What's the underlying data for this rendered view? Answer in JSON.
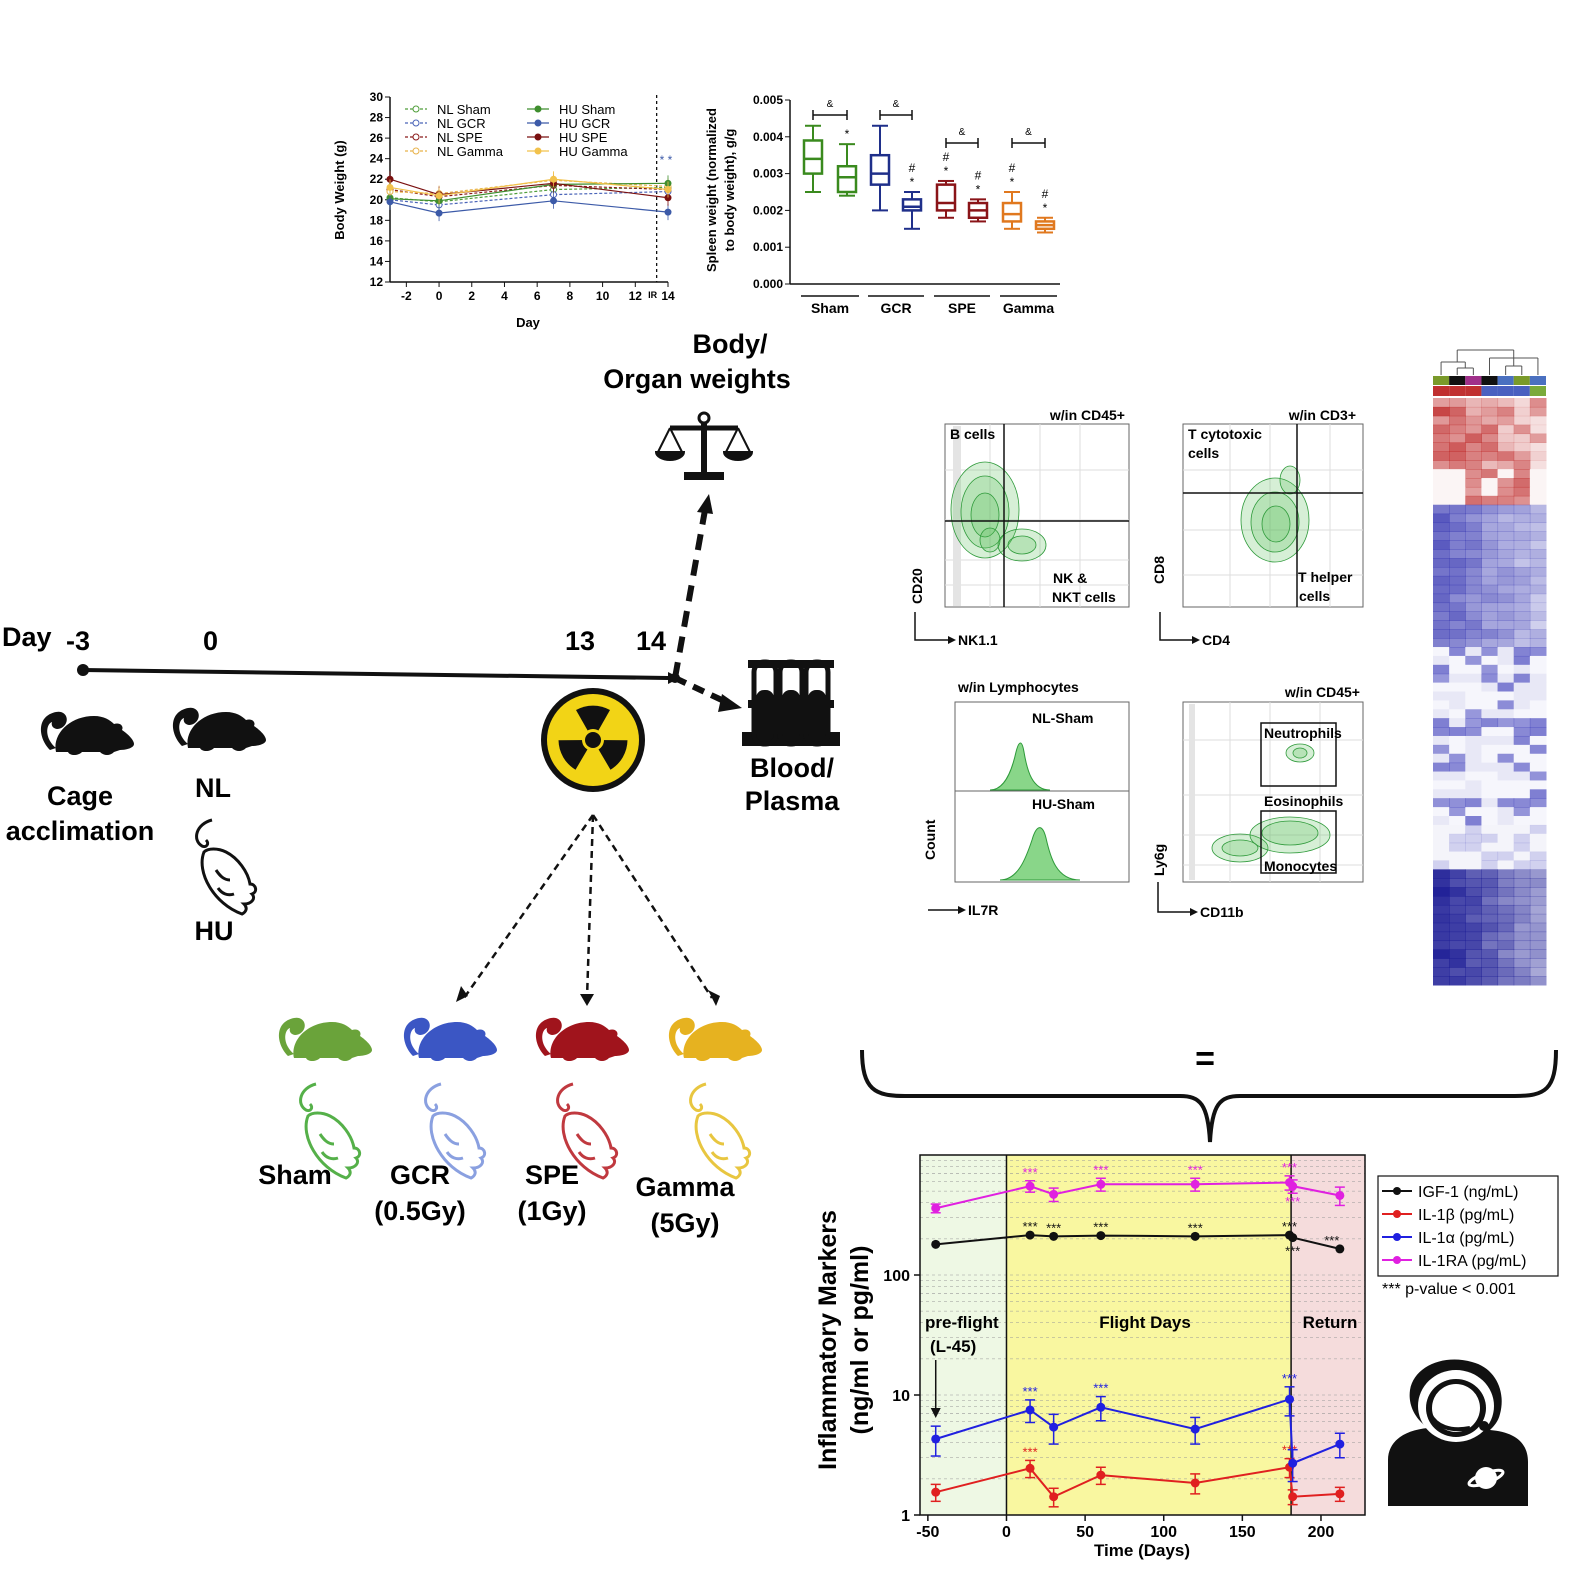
{
  "timeline": {
    "day_label": "Day",
    "ticks": [
      "-3",
      "0",
      "13",
      "14"
    ],
    "cage_label_1": "Cage",
    "cage_label_2": "acclimation",
    "nl_label": "NL",
    "hu_label": "HU"
  },
  "endpoints": {
    "body_organ_1": "Body/",
    "body_organ_2": "Organ weights",
    "blood_1": "Blood/",
    "blood_2": "Plasma"
  },
  "groups": [
    {
      "name": "Sham",
      "dose": "",
      "color": "#6aa33a",
      "outline": "#55b049"
    },
    {
      "name": "GCR",
      "dose": "(0.5Gy)",
      "color": "#3b56c4",
      "outline": "#8aa0e0"
    },
    {
      "name": "SPE",
      "dose": "(1Gy)",
      "color": "#a0141c",
      "outline": "#c0393f"
    },
    {
      "name": "Gamma",
      "dose": "(5Gy)",
      "color": "#e6b220",
      "outline": "#e8c640"
    }
  ],
  "body_weight_chart": {
    "chart_data": {
      "type": "line",
      "ylabel": "Body Weight (g)",
      "xlabel": "Day",
      "x": [
        -3,
        0,
        7,
        14
      ],
      "x_ticks": [
        "-2",
        "0",
        "2",
        "4",
        "6",
        "8",
        "10",
        "12",
        "14"
      ],
      "y_ticks": [
        "12",
        "14",
        "16",
        "18",
        "20",
        "22",
        "24",
        "26",
        "28",
        "30"
      ],
      "ylim": [
        12,
        30
      ],
      "xlim": [
        -3,
        14
      ],
      "ir_label": "IR",
      "ir_day": 13,
      "star_label": "* *",
      "series": [
        {
          "name": "NL Sham",
          "values": [
            20.2,
            19.8,
            21.0,
            21.2
          ],
          "color": "#4f9e3a",
          "dash": true
        },
        {
          "name": "NL GCR",
          "values": [
            20.0,
            19.5,
            20.5,
            20.8
          ],
          "color": "#4a64b8",
          "dash": true
        },
        {
          "name": "NL SPE",
          "values": [
            21.0,
            20.3,
            21.4,
            21.0
          ],
          "color": "#8a1a1a",
          "dash": true
        },
        {
          "name": "NL Gamma",
          "values": [
            20.8,
            20.6,
            21.9,
            21.3
          ],
          "color": "#e8b24a",
          "dash": true
        },
        {
          "name": "HU Sham",
          "values": [
            20.1,
            19.9,
            21.5,
            21.6
          ],
          "color": "#3f8e2e",
          "dash": false
        },
        {
          "name": "HU GCR",
          "values": [
            19.8,
            18.7,
            19.9,
            18.8
          ],
          "color": "#3c5aa8",
          "dash": false
        },
        {
          "name": "HU SPE",
          "values": [
            22.0,
            20.5,
            21.6,
            20.2
          ],
          "color": "#7a1010",
          "dash": false
        },
        {
          "name": "HU Gamma",
          "values": [
            21.2,
            20.4,
            22.0,
            21.0
          ],
          "color": "#f2c24c",
          "dash": false
        }
      ]
    }
  },
  "spleen_chart": {
    "chart_data": {
      "type": "box",
      "ylabel_1": "Spleen weight (normalized",
      "ylabel_2": "to body weight), g/g",
      "y_ticks": [
        "0.000",
        "0.001",
        "0.002",
        "0.003",
        "0.004",
        "0.005"
      ],
      "ylim": [
        0,
        0.005
      ],
      "categories": [
        "Sham",
        "GCR",
        "SPE",
        "Gamma"
      ],
      "amp": "&",
      "boxes": [
        {
          "group": "Sham",
          "cond": "NL",
          "min": 0.0025,
          "q1": 0.003,
          "median": 0.0034,
          "q3": 0.0039,
          "max": 0.0043,
          "color": "#3a8a1e",
          "marks": []
        },
        {
          "group": "Sham",
          "cond": "HU",
          "min": 0.0024,
          "q1": 0.0025,
          "median": 0.0029,
          "q3": 0.0032,
          "max": 0.0038,
          "color": "#3a8a1e",
          "marks": [
            "*"
          ]
        },
        {
          "group": "GCR",
          "cond": "NL",
          "min": 0.002,
          "q1": 0.0027,
          "median": 0.003,
          "q3": 0.0035,
          "max": 0.0043,
          "color": "#1f2f8a",
          "marks": []
        },
        {
          "group": "GCR",
          "cond": "HU",
          "min": 0.0015,
          "q1": 0.002,
          "median": 0.0021,
          "q3": 0.0023,
          "max": 0.0025,
          "color": "#1f2f8a",
          "marks": [
            "#",
            "*"
          ]
        },
        {
          "group": "SPE",
          "cond": "NL",
          "min": 0.0018,
          "q1": 0.002,
          "median": 0.0022,
          "q3": 0.0027,
          "max": 0.0028,
          "color": "#8a1418",
          "marks": [
            "#",
            "*"
          ]
        },
        {
          "group": "SPE",
          "cond": "HU",
          "min": 0.0017,
          "q1": 0.0018,
          "median": 0.002,
          "q3": 0.0022,
          "max": 0.0023,
          "color": "#8a1418",
          "marks": [
            "#",
            "*"
          ]
        },
        {
          "group": "Gamma",
          "cond": "NL",
          "min": 0.0015,
          "q1": 0.0017,
          "median": 0.0019,
          "q3": 0.0022,
          "max": 0.0025,
          "color": "#e0781e",
          "marks": [
            "#",
            "*"
          ]
        },
        {
          "group": "Gamma",
          "cond": "HU",
          "min": 0.0014,
          "q1": 0.0015,
          "median": 0.0016,
          "q3": 0.0017,
          "max": 0.0018,
          "color": "#e0781e",
          "marks": [
            "#",
            "*"
          ]
        }
      ]
    }
  },
  "flow": {
    "panel1": {
      "gate": "w/in CD45+",
      "q_tl": "B cells",
      "q_br_1": "NK &",
      "q_br_2": "NKT cells",
      "y_axis": "CD20",
      "x_axis": "NK1.1"
    },
    "panel2": {
      "gate": "w/in CD3+",
      "q_tl_1": "T cytotoxic",
      "q_tl_2": "cells",
      "q_br_1": "T helper",
      "q_br_2": "cells",
      "y_axis": "CD8",
      "x_axis": "CD4"
    },
    "panel3": {
      "gate": "w/in Lymphocytes",
      "top": "NL-Sham",
      "bottom": "HU-Sham",
      "y_axis": "Count",
      "x_axis": "IL7R"
    },
    "panel4": {
      "gate": "w/in CD45+",
      "g1": "Neutrophils",
      "g2": "Eosinophils",
      "g3": "Monocytes",
      "y_axis": "Ly6g",
      "x_axis": "CD11b"
    }
  },
  "equals_sign": "=",
  "inflammatory_chart": {
    "chart_data": {
      "type": "line",
      "ylabel_1": "Inflammatory Markers",
      "ylabel_2": "(ng/ml or pg/ml)",
      "xlabel": "Time (Days)",
      "y_scale": "log",
      "ylim": [
        1,
        1000
      ],
      "xlim": [
        -55,
        228
      ],
      "x_ticks": [
        "-50",
        "0",
        "50",
        "100",
        "150",
        "200"
      ],
      "y_ticks": [
        "1",
        "10",
        "100"
      ],
      "region_preflight_1": "pre-flight",
      "region_preflight_2": "(L-45)",
      "region_flight": "Flight Days",
      "region_return": "Return",
      "sig": "***",
      "footnote": "*** p-value < 0.001",
      "series": [
        {
          "name": "IGF-1 (ng/mL)",
          "color": "#111111",
          "x": [
            -45,
            15,
            30,
            60,
            120,
            180,
            182,
            212
          ],
          "values": [
            180,
            215,
            210,
            213,
            210,
            215,
            205,
            165
          ],
          "err": [
            0,
            0,
            0,
            0,
            0,
            0,
            0,
            0
          ]
        },
        {
          "name": "IL-1β (pg/mL)",
          "color": "#e02020",
          "x": [
            -45,
            15,
            30,
            60,
            120,
            180,
            182,
            212
          ],
          "values": [
            1.55,
            2.45,
            1.42,
            2.15,
            1.85,
            2.5,
            1.42,
            1.5
          ],
          "err": [
            0.25,
            0.4,
            0.25,
            0.35,
            0.35,
            0.45,
            0.2,
            0.2
          ]
        },
        {
          "name": "IL-1α (pg/mL)",
          "color": "#2020e0",
          "x": [
            -45,
            15,
            30,
            60,
            120,
            180,
            182,
            212
          ],
          "values": [
            4.3,
            7.5,
            5.4,
            7.9,
            5.2,
            9.2,
            2.7,
            3.9
          ],
          "err": [
            1.2,
            1.6,
            1.5,
            1.8,
            1.3,
            2.5,
            0.8,
            0.9
          ]
        },
        {
          "name": "IL-1RA (pg/mL)",
          "color": "#e020e0",
          "x": [
            -45,
            15,
            30,
            60,
            120,
            180,
            182,
            212
          ],
          "values": [
            360,
            550,
            470,
            570,
            570,
            590,
            550,
            460
          ],
          "err": [
            30,
            60,
            60,
            70,
            70,
            80,
            70,
            80
          ]
        }
      ]
    }
  }
}
